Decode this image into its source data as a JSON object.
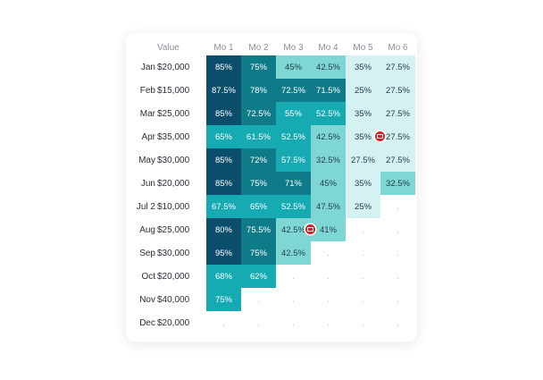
{
  "headers": {
    "value": "Value",
    "months": [
      "Mo 1",
      "Mo 2",
      "Mo 3",
      "Mo 4",
      "Mo 5",
      "Mo 6"
    ]
  },
  "rows": [
    {
      "month": "Jan",
      "value": "$20,000",
      "cells": [
        "85%",
        "75%",
        "45%",
        "42.5%",
        "35%",
        "27.5%"
      ]
    },
    {
      "month": "Feb",
      "value": "$15,000",
      "cells": [
        "87.5%",
        "78%",
        "72.5%",
        "71.5%",
        "25%",
        "27.5%"
      ]
    },
    {
      "month": "Mar",
      "value": "$25,000",
      "cells": [
        "85%",
        "72.5%",
        "55%",
        "52.5%",
        "35%",
        "27.5%"
      ]
    },
    {
      "month": "Apr",
      "value": "$35,000",
      "cells": [
        "65%",
        "61.5%",
        "52.5%",
        "42.5%",
        "35%",
        "27.5%"
      ]
    },
    {
      "month": "May",
      "value": "$30,000",
      "cells": [
        "85%",
        "72%",
        "57.5%",
        "32.5%",
        "27.5%",
        "27.5%"
      ]
    },
    {
      "month": "Jun",
      "value": "$20,000",
      "cells": [
        "85%",
        "75%",
        "71%",
        "45%",
        "35%",
        "32.5%"
      ]
    },
    {
      "month": "Jul 2",
      "value": "$10,000",
      "cells": [
        "67.5%",
        "65%",
        "52.5%",
        "47.5%",
        "25%",
        "."
      ]
    },
    {
      "month": "Aug",
      "value": "$25,000",
      "cells": [
        "80%",
        "75.5%",
        "42.5%",
        "41%",
        ".",
        "."
      ]
    },
    {
      "month": "Sep",
      "value": "$30,000",
      "cells": [
        "95%",
        "75%",
        "42.5%",
        ".",
        ".",
        "."
      ]
    },
    {
      "month": "Oct",
      "value": "$20,000",
      "cells": [
        "68%",
        "62%",
        ".",
        ".",
        ".",
        "."
      ]
    },
    {
      "month": "Nov",
      "value": "$40,000",
      "cells": [
        "75%",
        ".",
        ".",
        ".",
        ".",
        "."
      ]
    },
    {
      "month": "Dec",
      "value": "$20,000",
      "cells": [
        ".",
        ".",
        ".",
        ".",
        ".",
        "."
      ]
    }
  ],
  "fill_levels": [
    [
      5,
      4,
      2,
      2,
      1,
      1
    ],
    [
      5,
      4,
      4,
      4,
      1,
      1
    ],
    [
      5,
      4,
      3,
      3,
      1,
      1
    ],
    [
      3,
      3,
      3,
      2,
      1,
      1
    ],
    [
      5,
      4,
      3,
      2,
      1,
      1
    ],
    [
      5,
      4,
      4,
      2,
      1,
      2
    ],
    [
      3,
      3,
      3,
      2,
      1,
      0
    ],
    [
      5,
      4,
      2,
      2,
      0,
      0
    ],
    [
      5,
      4,
      2,
      0,
      0,
      0
    ],
    [
      3,
      3,
      0,
      0,
      0,
      0
    ],
    [
      3,
      0,
      0,
      0,
      0,
      0
    ],
    [
      0,
      0,
      0,
      0,
      0,
      0
    ]
  ],
  "palette": {
    "0": "#ffffff",
    "1": "#d4f2f1",
    "2": "#7ed7d5",
    "3": "#16aab3",
    "4": "#0f7b88",
    "5": "#0b4e6c"
  },
  "markers": [
    {
      "row": 3,
      "col": 4,
      "icon": "comment-icon",
      "color": "#d81f26"
    },
    {
      "row": 7,
      "col": 2,
      "icon": "comment-icon",
      "color": "#d81f26"
    }
  ]
}
